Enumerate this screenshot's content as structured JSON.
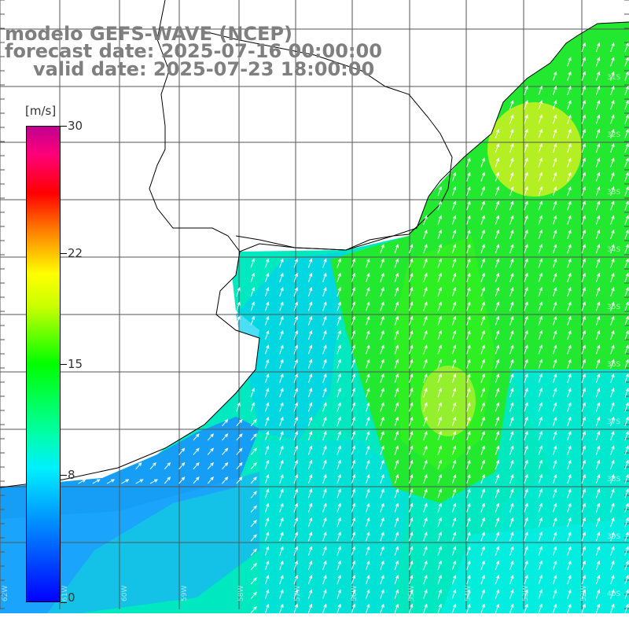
{
  "titles": {
    "line1": "modelo GEFS-WAVE (NCEP)",
    "line2": "forecast date: 2025-07-16 00:00:00",
    "line3": "valid date: 2025-07-23 18:00:00"
  },
  "colorbar": {
    "unit": "[m/s]",
    "ticks": [
      {
        "value": 30,
        "label": "30"
      },
      {
        "value": 22,
        "label": "22"
      },
      {
        "value": 15,
        "label": "15"
      },
      {
        "value": 8,
        "label": "8"
      },
      {
        "value": 0,
        "label": "0"
      }
    ],
    "range": [
      0,
      30
    ]
  },
  "map": {
    "grid_labels_right": [
      "30S",
      "31S",
      "32S",
      "33S",
      "34S",
      "35S",
      "36S",
      "37S",
      "38S",
      "39S",
      "40S",
      "41S"
    ],
    "grid_labels_bottom": [
      "62W",
      "61W",
      "60W",
      "59W",
      "58W",
      "57W",
      "56W",
      "55W",
      "54W",
      "53W",
      "52W",
      "51W"
    ],
    "land_color": "#ffffff",
    "grid_color": "#555555",
    "arrow_color": "#ffffff",
    "wind_direction": "south-southwesterly (arrows point NNE)"
  }
}
